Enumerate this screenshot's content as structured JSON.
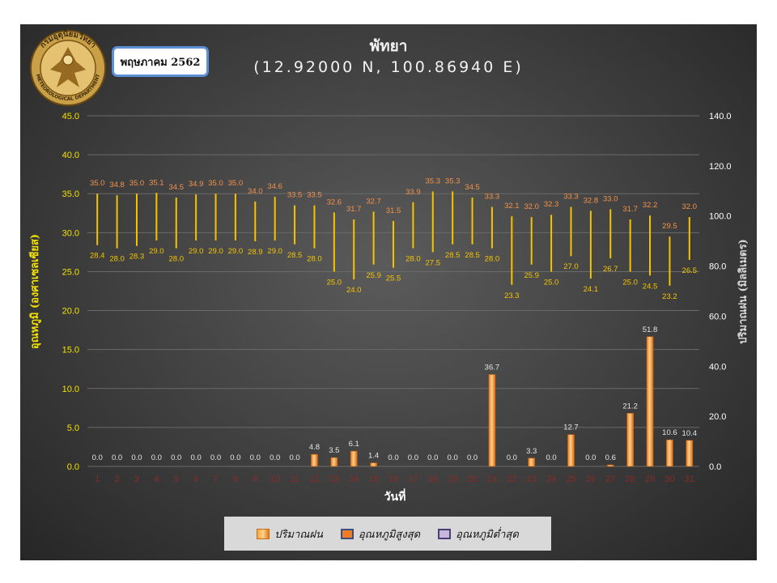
{
  "header": {
    "title": "พัทยา",
    "coords": "(12.92000 N, 100.86940 E)",
    "month_label": "พฤษภาคม 2562",
    "logo_text_top": "กรมอุตุนิยมวิทยา",
    "logo_text_bottom": "METEOROLOGICAL DEPARTMENT"
  },
  "colors": {
    "temp_line": "#f5c400",
    "max_label": "#f5924a",
    "min_label": "#f5c400",
    "rain_bar": "#f28b2e",
    "left_axis": "#f5e100",
    "right_axis": "#ffffff",
    "day_labels": "#8b2a2a"
  },
  "chart_data": {
    "type": "bar",
    "categories": [
      "1",
      "2",
      "3",
      "4",
      "5",
      "6",
      "7",
      "8",
      "9",
      "10",
      "11",
      "12",
      "13",
      "14",
      "15",
      "16",
      "17",
      "18",
      "19",
      "20",
      "21",
      "22",
      "23",
      "24",
      "25",
      "26",
      "27",
      "28",
      "29",
      "30",
      "31"
    ],
    "xlabel": "วันที่",
    "ylabel_left": "อุณหภูมิ (องศาเซลเซียส)",
    "ylabel_right": "ปริมาณฝน (มิลลิเมตร)",
    "ylim_left": [
      0,
      45
    ],
    "ylim_right": [
      0,
      140
    ],
    "yticks_left": [
      "0.0",
      "5.0",
      "10.0",
      "15.0",
      "20.0",
      "25.0",
      "30.0",
      "35.0",
      "40.0",
      "45.0"
    ],
    "yticks_right": [
      "0.0",
      "20.0",
      "40.0",
      "60.0",
      "80.0",
      "100.0",
      "120.0",
      "140.0"
    ],
    "legend_position": "bottom",
    "series": [
      {
        "name": "ปริมาณฝน",
        "axis": "right",
        "values": [
          0.0,
          0.0,
          0.0,
          0.0,
          0.0,
          0.0,
          0.0,
          0.0,
          0.0,
          0.0,
          0.0,
          4.8,
          3.5,
          6.1,
          1.4,
          0.0,
          0.0,
          0.0,
          0.0,
          0.0,
          36.7,
          0.0,
          3.3,
          0.0,
          12.7,
          0.0,
          0.6,
          21.2,
          51.8,
          10.6,
          10.4
        ]
      },
      {
        "name": "อุณหภูมิสูงสุด",
        "axis": "left",
        "values": [
          35.0,
          34.8,
          35.0,
          35.1,
          34.5,
          34.9,
          35.0,
          35.0,
          34.0,
          34.6,
          33.5,
          33.5,
          32.6,
          31.7,
          32.7,
          31.5,
          33.9,
          35.3,
          35.3,
          34.5,
          33.3,
          32.1,
          32.0,
          32.3,
          33.3,
          32.8,
          33.0,
          31.7,
          32.2,
          29.5,
          32.0
        ]
      },
      {
        "name": "อุณหภูมิต่ำสุด",
        "axis": "left",
        "values": [
          28.4,
          28.0,
          28.3,
          29.0,
          28.0,
          29.0,
          29.0,
          29.0,
          28.9,
          29.0,
          28.5,
          28.0,
          25.0,
          24.0,
          25.9,
          25.5,
          28.0,
          27.5,
          28.5,
          28.5,
          28.0,
          23.3,
          25.9,
          25.0,
          27.0,
          24.1,
          26.7,
          25.0,
          24.5,
          23.2,
          26.5
        ]
      }
    ]
  }
}
